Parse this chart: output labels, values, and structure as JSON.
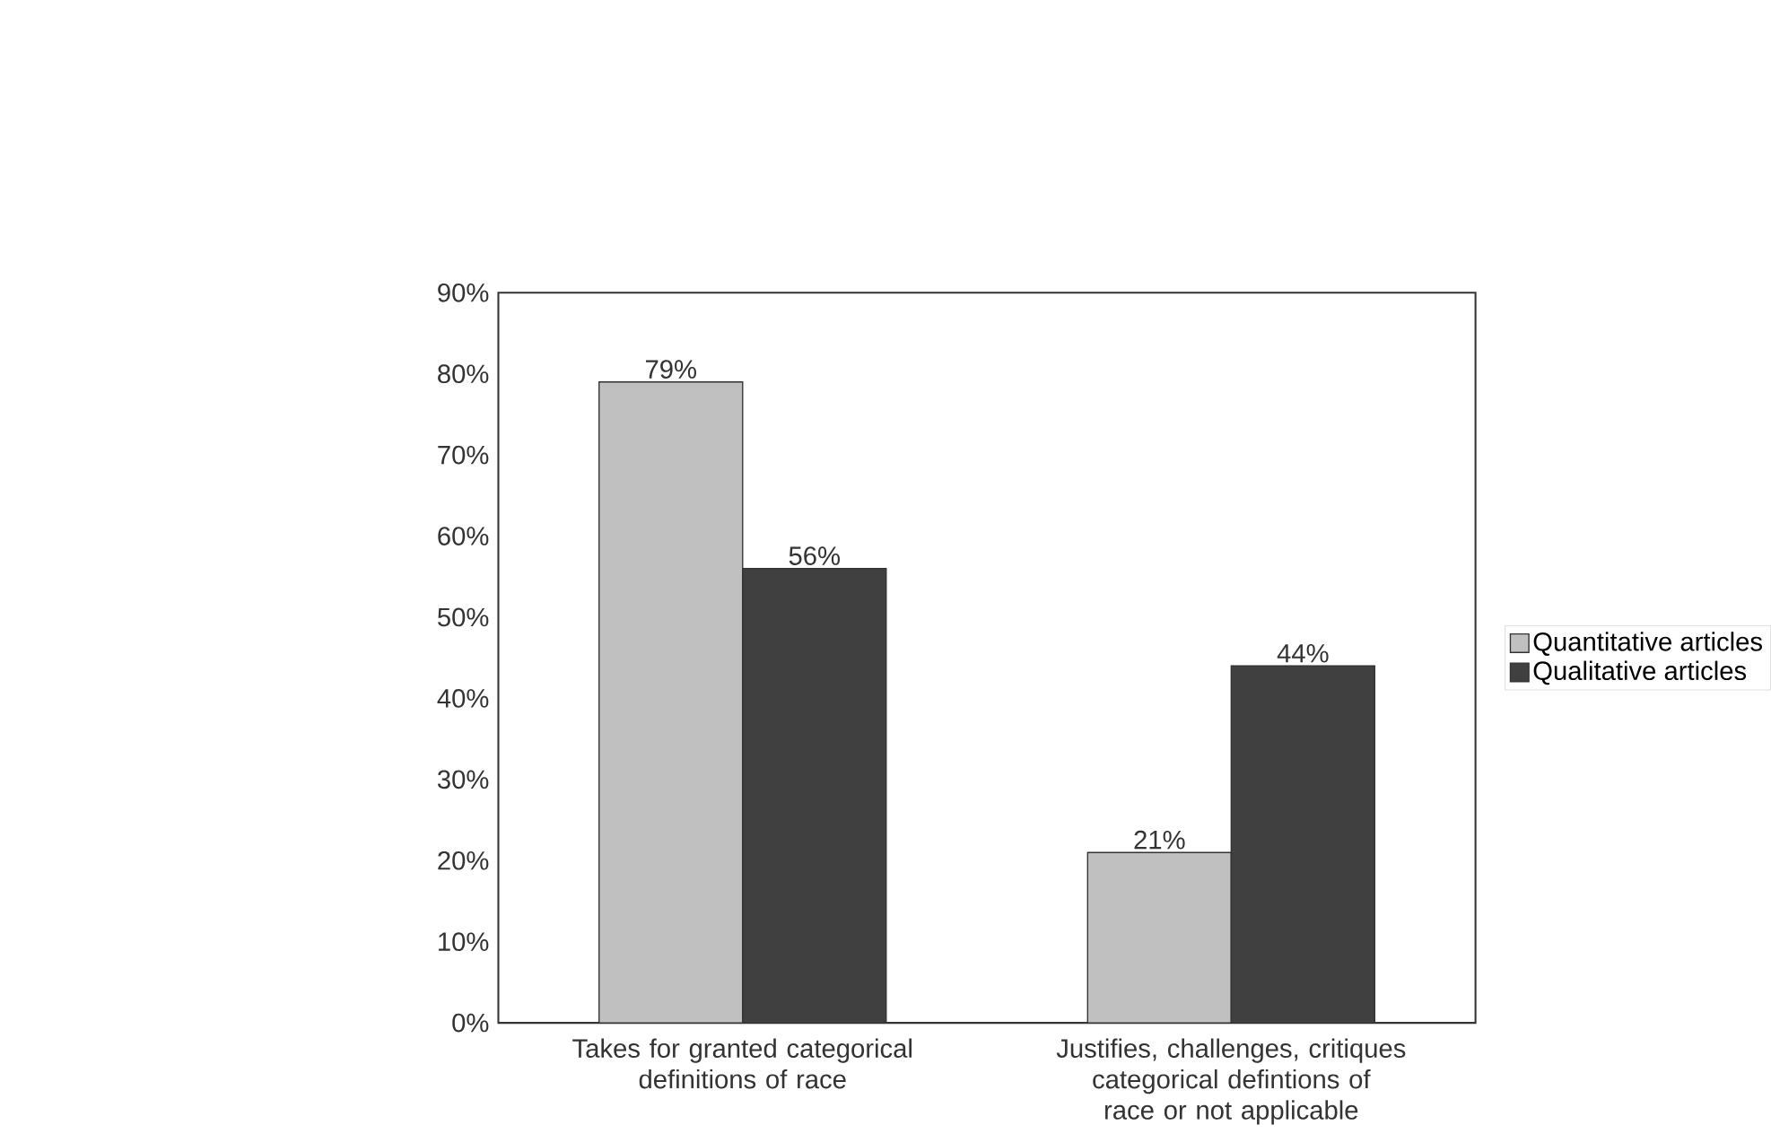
{
  "chart_data": {
    "type": "bar",
    "categories": [
      "Takes for granted categorical definitions of race",
      "Justifies, challenges, critiques categorical defintions of race or not applicable"
    ],
    "series": [
      {
        "name": "Quantitative articles",
        "color": "#c0c0c0",
        "values": [
          79,
          21
        ],
        "value_labels": [
          "79%",
          "21%"
        ]
      },
      {
        "name": "Qualitative articles",
        "color": "#404040",
        "values": [
          56,
          44
        ],
        "value_labels": [
          "56%",
          "44%"
        ]
      }
    ],
    "ylim": [
      0,
      90
    ],
    "yticks": [
      {
        "value": 0,
        "label": "0%"
      },
      {
        "value": 10,
        "label": "10%"
      },
      {
        "value": 20,
        "label": "20%"
      },
      {
        "value": 30,
        "label": "30%"
      },
      {
        "value": 40,
        "label": "40%"
      },
      {
        "value": 50,
        "label": "50%"
      },
      {
        "value": 60,
        "label": "60%"
      },
      {
        "value": 70,
        "label": "70%"
      },
      {
        "value": 80,
        "label": "80%"
      },
      {
        "value": 90,
        "label": "90%"
      }
    ],
    "grid": false,
    "legend": "right"
  }
}
